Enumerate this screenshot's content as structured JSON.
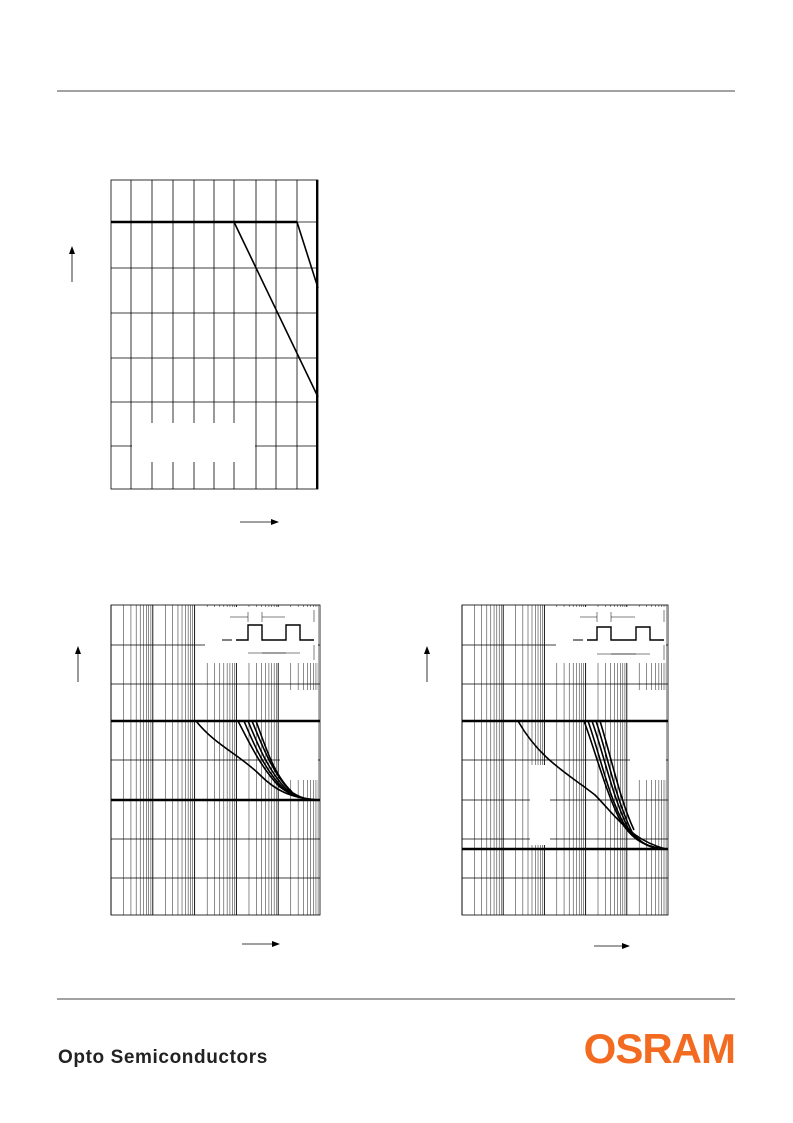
{
  "footer": {
    "division": "Opto Semiconductors",
    "logo": "OSRAM"
  }
}
